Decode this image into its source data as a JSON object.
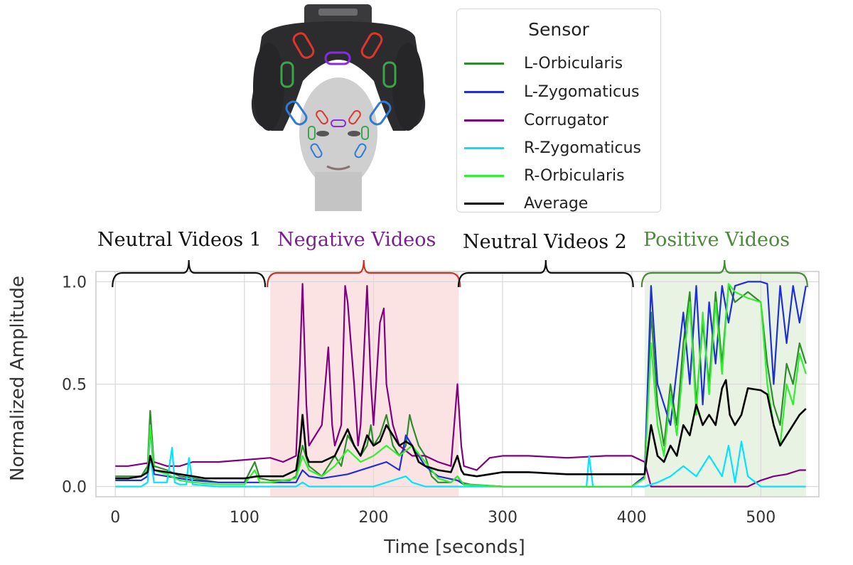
{
  "chart_data": {
    "type": "line",
    "title": "",
    "xlabel": "Time [seconds]",
    "ylabel": "Normalized Amplitude",
    "xlim": [
      -15,
      545
    ],
    "ylim": [
      -0.05,
      1.05
    ],
    "xticks": [
      0,
      100,
      200,
      300,
      400,
      500
    ],
    "yticks": [
      0.0,
      0.5,
      1.0
    ],
    "xtick_labels": [
      "0",
      "100",
      "200",
      "300",
      "400",
      "500"
    ],
    "ytick_labels": [
      "0.0",
      "0.5",
      "1.0"
    ],
    "grid": true,
    "legend": {
      "title": "Sensor",
      "position": "top-right, outside plot"
    },
    "regions": [
      {
        "label": "Neutral Videos 1",
        "x_start": 0,
        "x_end": 115,
        "label_color": "#111111",
        "brace_color": "#111111",
        "fill": null
      },
      {
        "label": "Negative Videos",
        "x_start": 120,
        "x_end": 266,
        "label_color": "#7b1f8f",
        "brace_color": "#c0392b",
        "fill": "#fbe3e3"
      },
      {
        "label": "Neutral Videos 2",
        "x_start": 268,
        "x_end": 400,
        "label_color": "#111111",
        "brace_color": "#111111",
        "fill": null
      },
      {
        "label": "Positive Videos",
        "x_start": 410,
        "x_end": 535,
        "label_color": "#4a8a3a",
        "brace_color": "#4a8a3a",
        "fill": "#e9f3e4"
      }
    ],
    "series": [
      {
        "name": "L-Orbicularis",
        "color": "#2e8b2e",
        "x": [
          0,
          20,
          25,
          27,
          30,
          40,
          50,
          60,
          70,
          80,
          90,
          100,
          108,
          112,
          120,
          135,
          140,
          145,
          150,
          160,
          165,
          170,
          175,
          180,
          185,
          190,
          195,
          198,
          200,
          205,
          210,
          215,
          220,
          225,
          228,
          230,
          235,
          240,
          245,
          250,
          255,
          260,
          265,
          268,
          275,
          300,
          350,
          400,
          410,
          415,
          420,
          425,
          430,
          435,
          440,
          445,
          450,
          455,
          460,
          465,
          470,
          475,
          480,
          490,
          500,
          505,
          510,
          515,
          520,
          525,
          530,
          535
        ],
        "y": [
          0.05,
          0.05,
          0.1,
          0.37,
          0.1,
          0.08,
          0.05,
          0.04,
          0.03,
          0.02,
          0.02,
          0.02,
          0.12,
          0.04,
          0.03,
          0.03,
          0.05,
          0.2,
          0.1,
          0.05,
          0.1,
          0.15,
          0.1,
          0.25,
          0.2,
          0.15,
          0.2,
          0.3,
          0.2,
          0.25,
          0.35,
          0.2,
          0.15,
          0.2,
          0.35,
          0.3,
          0.2,
          0.15,
          0.05,
          0.02,
          0.02,
          0.02,
          0.05,
          0.02,
          0.01,
          0.0,
          0.0,
          0.0,
          0.05,
          0.85,
          0.4,
          0.2,
          0.5,
          0.3,
          0.7,
          0.95,
          0.4,
          0.8,
          0.5,
          0.95,
          0.6,
          0.98,
          0.9,
          0.95,
          0.9,
          0.6,
          0.4,
          0.3,
          0.6,
          0.5,
          0.7,
          0.6
        ]
      },
      {
        "name": "L-Zygomaticus",
        "color": "#1f2fd6",
        "x": [
          0,
          20,
          25,
          27,
          30,
          40,
          50,
          60,
          80,
          100,
          120,
          140,
          145,
          150,
          160,
          180,
          200,
          210,
          220,
          225,
          230,
          240,
          250,
          265,
          270,
          300,
          400,
          410,
          415,
          420,
          430,
          440,
          445,
          450,
          455,
          460,
          465,
          470,
          475,
          480,
          485,
          490,
          500,
          505,
          510,
          515,
          520,
          525,
          530,
          535
        ],
        "y": [
          0.03,
          0.03,
          0.05,
          0.3,
          0.06,
          0.05,
          0.04,
          0.03,
          0.02,
          0.02,
          0.02,
          0.02,
          0.08,
          0.05,
          0.04,
          0.06,
          0.1,
          0.12,
          0.08,
          0.25,
          0.2,
          0.1,
          0.05,
          0.03,
          0.01,
          0.0,
          0.0,
          0.05,
          0.98,
          0.5,
          0.3,
          0.85,
          0.5,
          0.98,
          0.4,
          0.9,
          0.6,
          0.98,
          0.8,
          0.98,
          0.99,
          1.0,
          1.0,
          0.99,
          0.5,
          0.98,
          0.7,
          0.98,
          0.8,
          0.98
        ]
      },
      {
        "name": "Corrugator",
        "color": "#800080",
        "x": [
          0,
          10,
          20,
          30,
          40,
          50,
          60,
          80,
          100,
          120,
          130,
          140,
          143,
          145,
          148,
          150,
          160,
          165,
          168,
          170,
          175,
          178,
          180,
          185,
          188,
          190,
          195,
          198,
          200,
          205,
          208,
          210,
          215,
          220,
          230,
          240,
          250,
          260,
          265,
          268,
          270,
          280,
          290,
          300,
          320,
          350,
          380,
          400,
          410,
          415,
          420,
          440,
          460,
          470,
          480,
          490,
          500,
          510,
          520,
          530,
          535
        ],
        "y": [
          0.1,
          0.1,
          0.11,
          0.12,
          0.1,
          0.1,
          0.12,
          0.12,
          0.13,
          0.14,
          0.12,
          0.15,
          0.6,
          0.99,
          0.4,
          0.2,
          0.3,
          0.68,
          0.3,
          0.2,
          0.3,
          0.98,
          0.9,
          0.5,
          0.2,
          0.3,
          0.98,
          0.5,
          0.3,
          0.8,
          0.87,
          0.5,
          0.3,
          0.2,
          0.15,
          0.15,
          0.12,
          0.1,
          0.5,
          0.2,
          0.1,
          0.08,
          0.14,
          0.15,
          0.15,
          0.14,
          0.15,
          0.15,
          0.12,
          0.0,
          0.0,
          0.0,
          0.0,
          0.0,
          0.0,
          0.0,
          0.03,
          0.05,
          0.06,
          0.08,
          0.08
        ]
      },
      {
        "name": "R-Zygomaticus",
        "color": "#00e5ff",
        "x": [
          0,
          20,
          25,
          27,
          30,
          40,
          44,
          46,
          50,
          55,
          57,
          60,
          80,
          100,
          110,
          120,
          140,
          145,
          150,
          200,
          210,
          225,
          230,
          240,
          260,
          300,
          340,
          365,
          367,
          370,
          400,
          410,
          420,
          430,
          440,
          450,
          460,
          470,
          475,
          480,
          485,
          490,
          500,
          505,
          510,
          515,
          520,
          525,
          530,
          535
        ],
        "y": [
          0.0,
          0.0,
          0.02,
          0.15,
          0.02,
          0.02,
          0.19,
          0.02,
          0.01,
          0.01,
          0.14,
          0.01,
          0.0,
          0.0,
          0.0,
          0.0,
          0.0,
          0.02,
          0.0,
          0.0,
          0.02,
          0.05,
          0.02,
          0.0,
          0.0,
          0.0,
          0.0,
          0.0,
          0.15,
          0.0,
          0.0,
          0.0,
          0.02,
          0.05,
          0.1,
          0.05,
          0.15,
          0.05,
          0.2,
          0.02,
          0.22,
          0.05,
          0.0,
          0.0,
          0.0,
          0.0,
          0.0,
          0.0,
          0.0,
          0.0
        ]
      },
      {
        "name": "R-Orbicularis",
        "color": "#33ee33",
        "x": [
          0,
          10,
          20,
          25,
          27,
          30,
          40,
          50,
          60,
          80,
          100,
          108,
          112,
          120,
          140,
          145,
          150,
          160,
          170,
          180,
          190,
          200,
          210,
          220,
          230,
          240,
          250,
          260,
          265,
          270,
          300,
          350,
          400,
          410,
          415,
          420,
          425,
          430,
          435,
          440,
          445,
          450,
          455,
          460,
          465,
          470,
          475,
          480,
          490,
          500,
          505,
          510,
          515,
          520,
          525,
          530,
          535
        ],
        "y": [
          0.04,
          0.04,
          0.05,
          0.08,
          0.3,
          0.08,
          0.06,
          0.03,
          0.02,
          0.01,
          0.01,
          0.08,
          0.02,
          0.02,
          0.04,
          0.15,
          0.08,
          0.05,
          0.1,
          0.18,
          0.12,
          0.15,
          0.2,
          0.15,
          0.2,
          0.12,
          0.04,
          0.02,
          0.05,
          0.01,
          0.0,
          0.0,
          0.0,
          0.04,
          0.7,
          0.3,
          0.15,
          0.45,
          0.25,
          0.6,
          0.9,
          0.35,
          0.85,
          0.45,
          0.9,
          0.55,
          0.99,
          0.95,
          0.92,
          0.9,
          0.5,
          0.3,
          0.2,
          0.5,
          0.4,
          0.65,
          0.55
        ]
      },
      {
        "name": "Average",
        "color": "#000000",
        "x": [
          0,
          10,
          20,
          25,
          27,
          30,
          40,
          50,
          60,
          70,
          80,
          90,
          100,
          110,
          120,
          130,
          140,
          143,
          145,
          148,
          150,
          160,
          170,
          180,
          185,
          190,
          195,
          200,
          205,
          210,
          215,
          220,
          225,
          230,
          235,
          240,
          250,
          260,
          265,
          268,
          270,
          280,
          290,
          300,
          320,
          350,
          380,
          400,
          410,
          415,
          420,
          425,
          430,
          435,
          440,
          445,
          450,
          455,
          460,
          465,
          470,
          473,
          476,
          480,
          485,
          490,
          500,
          505,
          510,
          515,
          520,
          525,
          530,
          535
        ],
        "y": [
          0.04,
          0.04,
          0.05,
          0.07,
          0.15,
          0.08,
          0.07,
          0.06,
          0.05,
          0.04,
          0.04,
          0.04,
          0.04,
          0.05,
          0.05,
          0.05,
          0.08,
          0.2,
          0.35,
          0.15,
          0.12,
          0.12,
          0.15,
          0.28,
          0.2,
          0.15,
          0.25,
          0.2,
          0.22,
          0.3,
          0.25,
          0.2,
          0.22,
          0.2,
          0.12,
          0.1,
          0.08,
          0.07,
          0.15,
          0.08,
          0.06,
          0.05,
          0.06,
          0.07,
          0.07,
          0.06,
          0.06,
          0.06,
          0.06,
          0.3,
          0.15,
          0.12,
          0.2,
          0.15,
          0.3,
          0.25,
          0.4,
          0.3,
          0.35,
          0.3,
          0.48,
          0.52,
          0.35,
          0.3,
          0.35,
          0.48,
          0.47,
          0.45,
          0.3,
          0.2,
          0.25,
          0.3,
          0.35,
          0.38
        ]
      }
    ]
  },
  "legend_items": [
    {
      "label": "L-Orbicularis",
      "color": "#2e8b2e"
    },
    {
      "label": "L-Zygomaticus",
      "color": "#1f2fd6"
    },
    {
      "label": "Corrugator",
      "color": "#800080"
    },
    {
      "label": "R-Zygomaticus",
      "color": "#00e5ff"
    },
    {
      "label": "R-Orbicularis",
      "color": "#33ee33"
    },
    {
      "label": "Average",
      "color": "#000000"
    }
  ],
  "illustration": {
    "headset_color": "#2c2c2e",
    "face_color": "#cfcfcf",
    "electrode_outline_colors": [
      "#e0352b",
      "#8a2be2",
      "#3fa34d",
      "#2e7bd6"
    ]
  }
}
